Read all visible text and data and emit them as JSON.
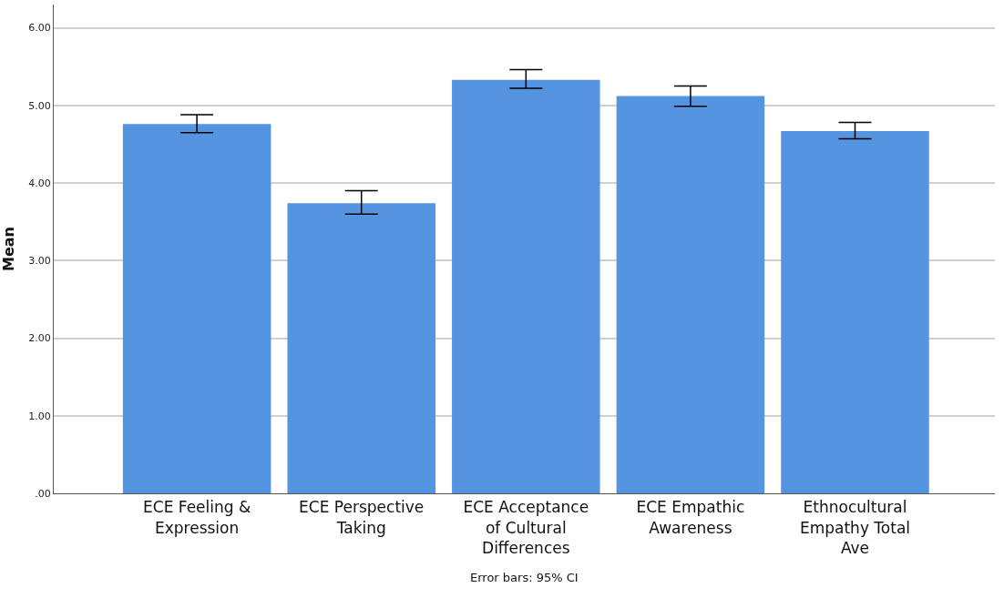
{
  "chart_data": {
    "type": "bar",
    "ylabel": "Mean",
    "categories": [
      "ECE Feeling & Expression",
      "ECE Perspective Taking",
      "ECE Acceptance of Cultural Differences",
      "ECE Empathic Awareness",
      "Ethnocultural Empathy Total Ave"
    ],
    "values": [
      4.76,
      3.74,
      5.33,
      5.12,
      4.67
    ],
    "errors": [
      [
        4.65,
        4.88
      ],
      [
        3.6,
        3.9
      ],
      [
        5.22,
        5.46
      ],
      [
        4.99,
        5.25
      ],
      [
        4.57,
        4.78
      ]
    ],
    "color": "#5594e0",
    "ylim": [
      0,
      6.3
    ],
    "yticks": [
      {
        "value": 0,
        "label": ".00"
      },
      {
        "value": 1,
        "label": "1.00"
      },
      {
        "value": 2,
        "label": "2.00"
      },
      {
        "value": 3,
        "label": "3.00"
      },
      {
        "value": 4,
        "label": "4.00"
      },
      {
        "value": 5,
        "label": "5.00"
      },
      {
        "value": 6,
        "label": "6.00"
      }
    ],
    "grid": "y",
    "annotations": [
      "Error bars: 95% CI"
    ]
  }
}
